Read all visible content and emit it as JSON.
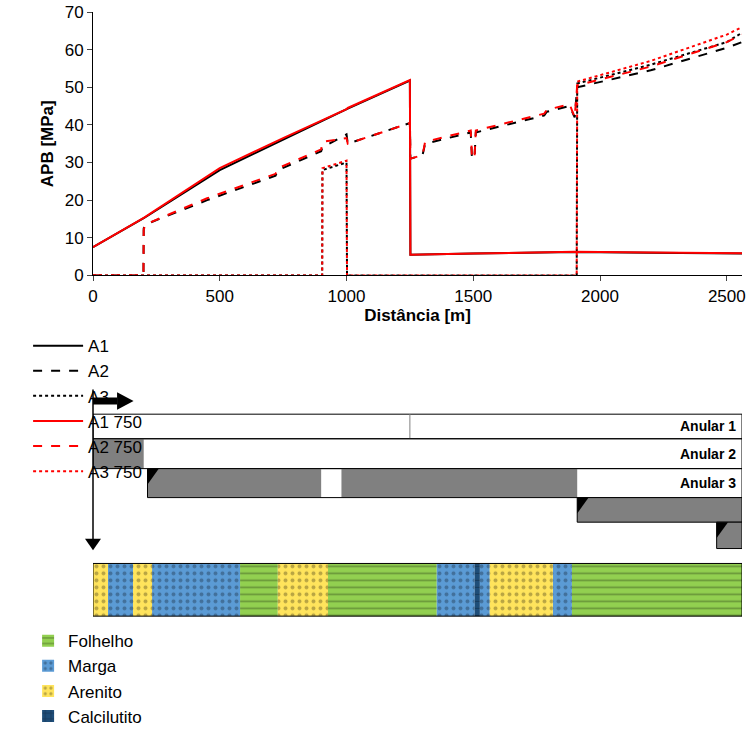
{
  "chart_data": {
    "type": "line",
    "x_label": "Distância [m]",
    "y_label": "APB [MPa]",
    "xlim": [
      0,
      2560
    ],
    "xticks": [
      0,
      500,
      1000,
      1500,
      2000,
      2500
    ],
    "ylim": [
      0,
      70
    ],
    "yticks": [
      0,
      10,
      20,
      30,
      40,
      50,
      60,
      70
    ],
    "grid": false,
    "legend": "bottom",
    "series": [
      {
        "name": "A1",
        "color": "#000000",
        "line_style": "solid",
        "x": [
          0,
          200,
          500,
          750,
          1000,
          1005,
          1250,
          1252,
          1500,
          1900,
          2200,
          2560
        ],
        "values": [
          7.5,
          15.2,
          28,
          36,
          44,
          44.3,
          51.8,
          5.5,
          5.8,
          6.2,
          6.0,
          5.8
        ]
      },
      {
        "name": "A2",
        "color": "#000000",
        "line_style": "dashed",
        "x": [
          0,
          199,
          200,
          205,
          450,
          720,
          730,
          900,
          905,
          1000,
          1005,
          1250,
          1252,
          1300,
          1310,
          1490,
          1495,
          1505,
          1510,
          1780,
          1790,
          1880,
          1900,
          1910,
          2200,
          2500,
          2560
        ],
        "values": [
          0,
          0,
          12.5,
          13.5,
          20,
          26.5,
          28,
          33,
          34,
          37.5,
          35,
          40.5,
          31,
          32,
          35,
          38,
          31,
          31.5,
          38,
          42.5,
          43.5,
          45,
          42,
          50,
          54.5,
          60.5,
          62
        ]
      },
      {
        "name": "A3",
        "color": "#000000",
        "line_style": "dotted",
        "x": [
          0,
          904,
          905,
          1000,
          1002,
          1908,
          1910,
          2200,
          2500,
          2560
        ],
        "values": [
          0,
          0,
          28,
          30,
          0,
          0,
          51,
          56,
          62,
          64.5
        ]
      },
      {
        "name": "A1 750",
        "color": "#ff0000",
        "line_style": "solid",
        "x": [
          0,
          200,
          500,
          750,
          1000,
          1005,
          1250,
          1252,
          1500,
          1900,
          2200,
          2560
        ],
        "values": [
          7.5,
          15.3,
          28.5,
          36.5,
          44.2,
          44.5,
          51.9,
          5.5,
          5.8,
          6.3,
          6.1,
          5.9
        ]
      },
      {
        "name": "A2 750",
        "color": "#ff0000",
        "line_style": "dashed",
        "x": [
          0,
          199,
          200,
          205,
          450,
          720,
          730,
          900,
          905,
          1000,
          1005,
          1250,
          1252,
          1300,
          1310,
          1490,
          1495,
          1505,
          1510,
          1780,
          1790,
          1880,
          1900,
          1910,
          2200,
          2500,
          2560
        ],
        "values": [
          0,
          0,
          12,
          13.5,
          20.5,
          27,
          28.5,
          33.5,
          35.5,
          36.5,
          35,
          40.5,
          31,
          32,
          35.5,
          38.5,
          31,
          31.5,
          38.5,
          43,
          44,
          45.5,
          42,
          50.5,
          55.5,
          62,
          64
        ]
      },
      {
        "name": "A3 750",
        "color": "#ff0000",
        "line_style": "dotted",
        "x": [
          0,
          904,
          905,
          1000,
          1002,
          1908,
          1910,
          2200,
          2500,
          2560
        ],
        "values": [
          0,
          0,
          28.5,
          30.5,
          0,
          0,
          51.5,
          57,
          64,
          66
        ]
      }
    ]
  },
  "diagram": {
    "annuli": [
      {
        "label": "Anular 1",
        "start": 0,
        "end": 2560,
        "cement": [],
        "divider": 1250
      },
      {
        "label": "Anular 2",
        "start": 0,
        "end": 2560,
        "cement": [
          [
            0,
            200
          ]
        ]
      },
      {
        "label": "Anular 3",
        "start": 215,
        "end": 2560,
        "cement": [
          [
            215,
            900
          ],
          [
            980,
            1910
          ]
        ],
        "shoe": 215
      },
      {
        "start": 1910,
        "end": 2560,
        "cement": [
          [
            1910,
            2560
          ]
        ],
        "shoe": 1910
      },
      {
        "start": 2460,
        "end": 2560,
        "cement": [
          [
            2460,
            2560
          ]
        ],
        "shoe": 2460
      }
    ],
    "lithology": {
      "legend": "bottom",
      "types": [
        {
          "name": "Folhelho",
          "color": "#92d050",
          "marker": "dash"
        },
        {
          "name": "Marga",
          "color": "#5b9bd5",
          "marker": "dot"
        },
        {
          "name": "Arenito",
          "color": "#ffe45c",
          "marker": "dot"
        },
        {
          "name": "Calcilutito",
          "color": "#1f4e79",
          "marker": "cross"
        }
      ],
      "layers": [
        {
          "name": "Arenito",
          "from": 0,
          "to": 59
        },
        {
          "name": "Marga",
          "from": 59,
          "to": 158
        },
        {
          "name": "Arenito",
          "from": 158,
          "to": 233
        },
        {
          "name": "Marga",
          "from": 233,
          "to": 580
        },
        {
          "name": "Folhelho",
          "from": 580,
          "to": 729
        },
        {
          "name": "Arenito",
          "from": 729,
          "to": 927
        },
        {
          "name": "Folhelho",
          "from": 927,
          "to": 1356
        },
        {
          "name": "Marga",
          "from": 1356,
          "to": 1506
        },
        {
          "name": "Calcilutito",
          "from": 1506,
          "to": 1526
        },
        {
          "name": "Marga",
          "from": 1526,
          "to": 1565
        },
        {
          "name": "Arenito",
          "from": 1565,
          "to": 1814
        },
        {
          "name": "Marga",
          "from": 1814,
          "to": 1889
        },
        {
          "name": "Folhelho",
          "from": 1889,
          "to": 2560
        }
      ]
    }
  }
}
